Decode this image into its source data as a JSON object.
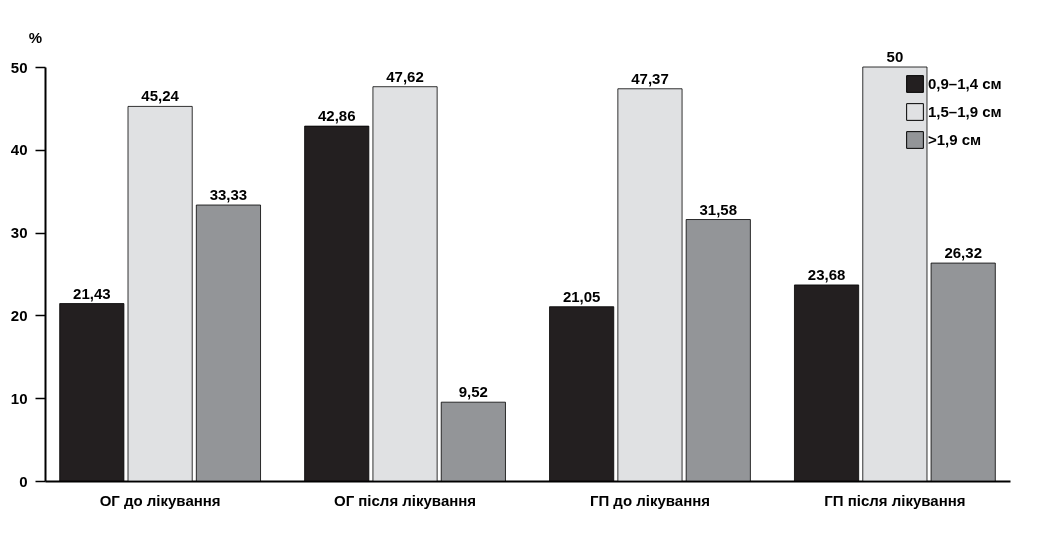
{
  "chart_data": {
    "type": "bar",
    "ylabel": "%",
    "categories": [
      "ОГ до лікування",
      "ОГ після лікування",
      "ГП до лікування",
      "ГП після лікування"
    ],
    "series": [
      {
        "name": "0,9–1,4 см",
        "color": "#231f20",
        "values": [
          21.43,
          42.86,
          21.05,
          23.68
        ],
        "value_labels": [
          "21,43",
          "42,86",
          "21,05",
          "23,68"
        ]
      },
      {
        "name": "1,5–1,9 см",
        "color": "#e0e1e3",
        "values": [
          45.24,
          47.62,
          47.37,
          50
        ],
        "value_labels": [
          "45,24",
          "47,62",
          "47,37",
          "50"
        ]
      },
      {
        "name": ">1,9 см",
        "color": "#939598",
        "values": [
          33.33,
          9.52,
          31.58,
          26.32
        ],
        "value_labels": [
          "33,33",
          "9,52",
          "31,58",
          "26,32"
        ]
      }
    ],
    "ylim": [
      0,
      50
    ],
    "yticks": [
      0,
      10,
      20,
      30,
      40,
      50
    ],
    "grid": false,
    "legend": "top right"
  }
}
